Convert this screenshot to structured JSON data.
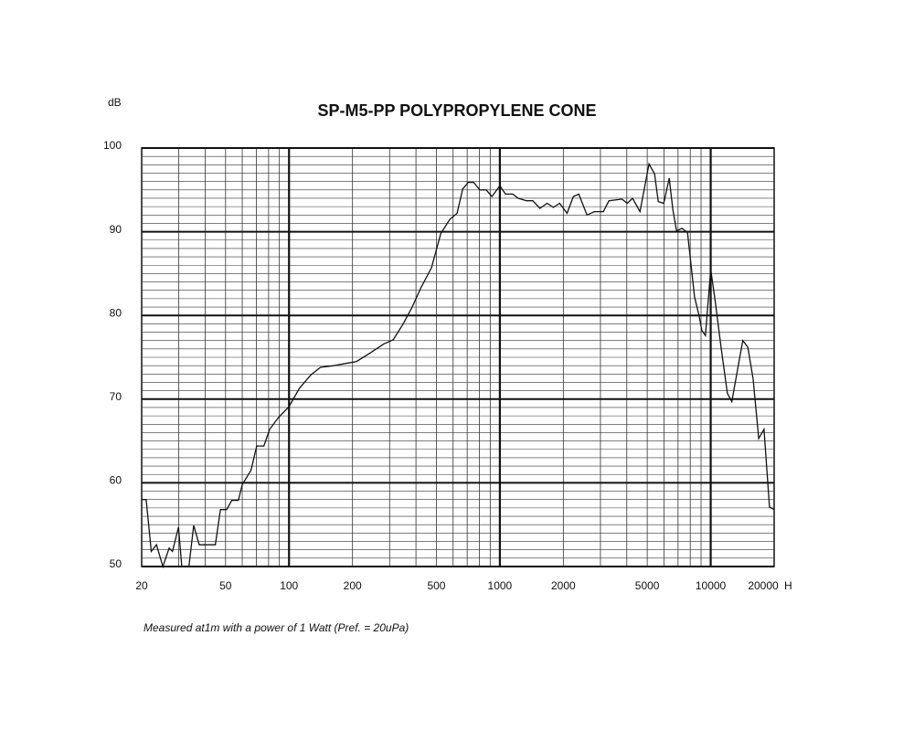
{
  "chart_data": {
    "type": "line",
    "title": "SP-M5-PP POLYPROPYLENE CONE",
    "ylabel": "dB",
    "xlabel": "H",
    "caption": "Measured at1m with a power of 1 Watt (Pref. = 20uPa)",
    "xscale": "log",
    "xlim": [
      20,
      20000
    ],
    "ylim": [
      50,
      100
    ],
    "xticks": [
      20,
      50,
      100,
      200,
      500,
      1000,
      2000,
      5000,
      10000,
      20000
    ],
    "yticks": [
      50,
      60,
      70,
      80,
      90,
      100
    ],
    "grid_x_major": [
      100,
      1000,
      10000
    ],
    "grid_x_minor": [
      30,
      40,
      50,
      60,
      70,
      80,
      90,
      200,
      300,
      400,
      500,
      600,
      700,
      800,
      900,
      2000,
      3000,
      4000,
      5000,
      6000,
      7000,
      8000,
      9000
    ],
    "grid_y_minor": [
      51,
      52,
      53,
      54,
      55,
      56,
      57,
      58,
      59,
      61,
      62,
      63,
      64,
      65,
      66,
      67,
      68,
      69,
      71,
      72,
      73,
      74,
      75,
      76,
      77,
      78,
      79,
      81,
      82,
      83,
      84,
      85,
      86,
      87,
      88,
      89,
      91,
      92,
      93,
      94,
      95,
      96,
      97,
      98,
      99
    ],
    "color": "#111111",
    "x": [
      20,
      21,
      22.2,
      23.5,
      25.2,
      27,
      28,
      29.9,
      31,
      33.5,
      35.3,
      37.5,
      40.4,
      44.7,
      47.3,
      50.6,
      53.5,
      57.5,
      60,
      66,
      70.3,
      76,
      81,
      89,
      100,
      112,
      127,
      141,
      163,
      209,
      242,
      282,
      312,
      346,
      382,
      422,
      474,
      525,
      580,
      627,
      666,
      708,
      751,
      804,
      862,
      917,
      1000,
      1063,
      1150,
      1222,
      1337,
      1432,
      1548,
      1675,
      1794,
      1922,
      2082,
      2232,
      2370,
      2590,
      2810,
      3100,
      3290,
      3790,
      4020,
      4260,
      4620,
      5100,
      5420,
      5640,
      5990,
      6360,
      6620,
      6890,
      7310,
      7760,
      8380,
      8800,
      9080,
      9440,
      10000,
      10500,
      11200,
      12000,
      12600,
      13400,
      14200,
      15000,
      15900,
      16900,
      17900,
      19000,
      20000
    ],
    "values": [
      58,
      58,
      51.8,
      52.6,
      50,
      52.2,
      51.8,
      54.7,
      50,
      50,
      54.9,
      52.6,
      52.6,
      52.6,
      56.8,
      56.8,
      57.9,
      57.9,
      59.8,
      61.5,
      64.4,
      64.4,
      66.4,
      67.8,
      69.1,
      71.3,
      72.9,
      73.8,
      74,
      74.5,
      75.5,
      76.6,
      77.1,
      78.9,
      80.9,
      83.3,
      85.7,
      89.8,
      91.5,
      92.2,
      95.1,
      95.9,
      95.9,
      95,
      95,
      94.2,
      95.5,
      94.5,
      94.5,
      94,
      93.7,
      93.7,
      92.8,
      93.4,
      92.9,
      93.4,
      92.2,
      94.2,
      94.5,
      92,
      92.4,
      92.4,
      93.7,
      93.9,
      93.4,
      94,
      92.4,
      98.1,
      96.9,
      93.6,
      93.4,
      96.4,
      92.6,
      90.1,
      90.4,
      89.9,
      82.2,
      80,
      78.2,
      77.6,
      85.5,
      81.7,
      76.2,
      70.7,
      69.7,
      73.5,
      77,
      76.2,
      72.4,
      65.3,
      66.4,
      57.1,
      56.8
    ]
  }
}
